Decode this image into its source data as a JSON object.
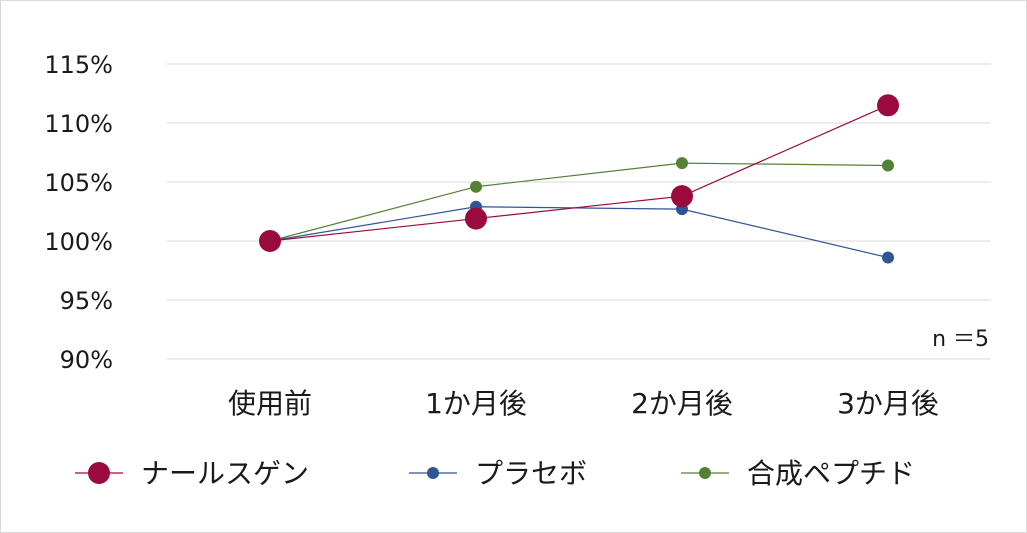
{
  "chart_data": {
    "type": "line",
    "title": "",
    "xlabel": "",
    "ylabel": "",
    "categories": [
      "使用前",
      "1か月後",
      "2か月後",
      "3か月後"
    ],
    "y_tick_labels": [
      "115%",
      "110%",
      "105%",
      "100%",
      "95%",
      "90%"
    ],
    "y_ticks": [
      115,
      110,
      105,
      100,
      95,
      90
    ],
    "ylim": [
      90,
      115
    ],
    "grid": true,
    "legend_position": "bottom",
    "annotation": "n ＝5",
    "series": [
      {
        "name": "ナールスゲン",
        "color": "#9b0a3f",
        "values": [
          100.0,
          101.9,
          103.8,
          111.5
        ]
      },
      {
        "name": "プラセボ",
        "color": "#2f5597",
        "values": [
          100.0,
          102.9,
          102.7,
          98.6
        ]
      },
      {
        "name": "合成ペプチド",
        "color": "#538135",
        "values": [
          100.0,
          104.6,
          106.6,
          106.4
        ]
      }
    ]
  }
}
